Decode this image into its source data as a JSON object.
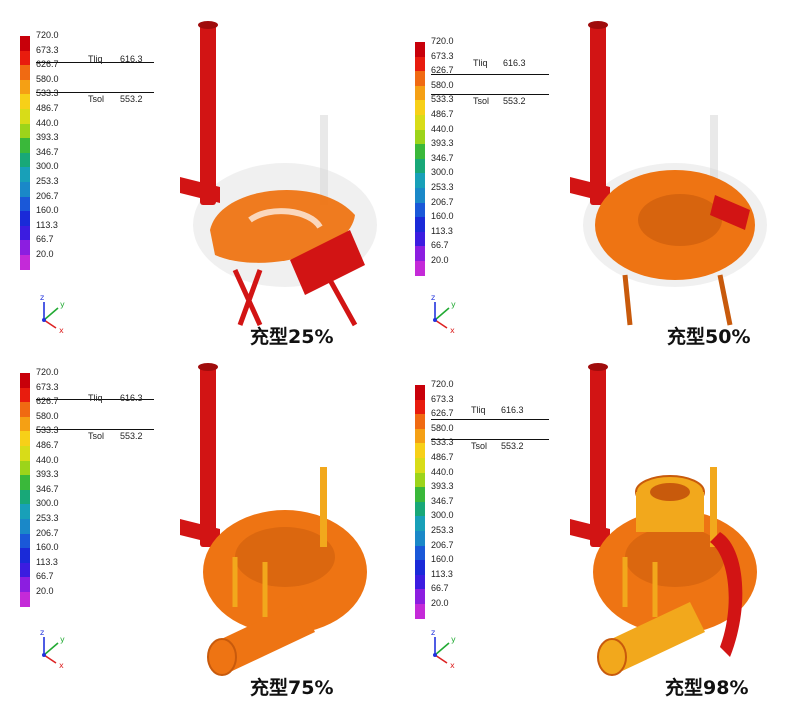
{
  "scale": {
    "ticks": [
      "720.0",
      "673.3",
      "626.7",
      "580.0",
      "533.3",
      "486.7",
      "440.0",
      "393.3",
      "346.7",
      "300.0",
      "253.3",
      "206.7",
      "160.0",
      "113.3",
      "66.7",
      "20.0"
    ],
    "colors": [
      "#c8000a",
      "#e81c0e",
      "#f06a12",
      "#f5a014",
      "#f7d018",
      "#d8dc18",
      "#9cd41a",
      "#3ab83a",
      "#18a878",
      "#18a0b8",
      "#1a88c8",
      "#1a58d8",
      "#1a2ad8",
      "#3c1ce0",
      "#8c1ee0",
      "#c42ad8"
    ],
    "liquidus_label": "Tliq",
    "liquidus_value": "616.3",
    "solidus_label": "Tsol",
    "solidus_value": "553.2"
  },
  "axes_labels": {
    "x": "x",
    "y": "y",
    "z": "z"
  },
  "colors": {
    "runner": "#d21414",
    "casting": "#ee7413",
    "casting_shade": "#c85a0c",
    "filled_late": "#f2a81c",
    "ghost": "#d4d4d4"
  },
  "panels": [
    {
      "caption": "充型25%"
    },
    {
      "caption": "充型50%"
    },
    {
      "caption": "充型75%"
    },
    {
      "caption": "充型98%"
    }
  ]
}
